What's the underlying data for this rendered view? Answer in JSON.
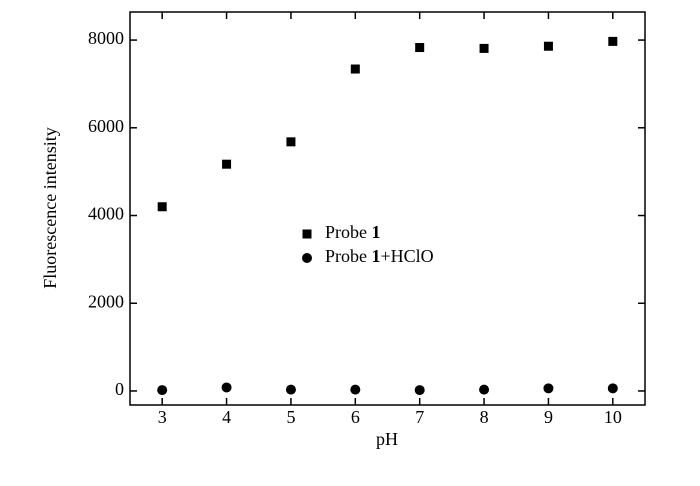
{
  "chart_data": {
    "type": "scatter",
    "x_label": "pH",
    "y_label": "Fluorescence intensity",
    "x": [
      3,
      4,
      5,
      6,
      7,
      8,
      9,
      10
    ],
    "series": [
      {
        "name": "Probe 1",
        "marker": "square",
        "color": "#000000",
        "values": [
          4200,
          5170,
          5680,
          7340,
          7830,
          7810,
          7860,
          7970
        ]
      },
      {
        "name": "Probe 1+HClO",
        "marker": "circle",
        "color": "#000000",
        "values": [
          20,
          80,
          30,
          30,
          20,
          30,
          60,
          60
        ]
      }
    ],
    "xlim": [
      2.5,
      10.5
    ],
    "xticks": [
      3,
      4,
      5,
      6,
      7,
      8,
      9,
      10
    ],
    "ylim": [
      -320,
      8640
    ],
    "yticks": [
      0,
      2000,
      4000,
      6000,
      8000
    ],
    "legend": "center",
    "grid": false
  }
}
